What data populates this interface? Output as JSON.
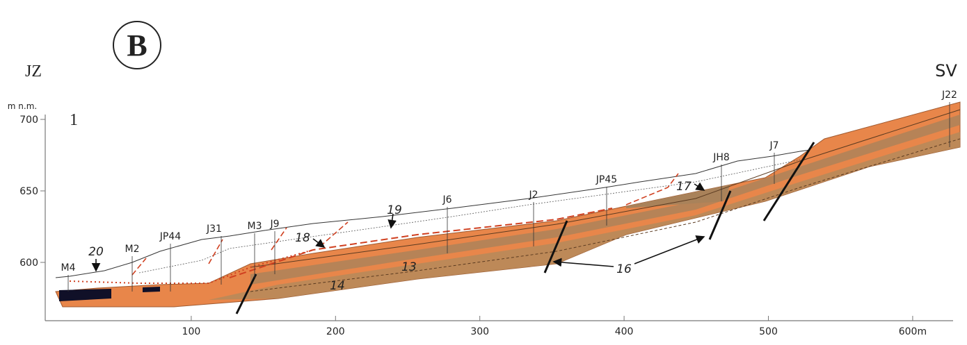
{
  "panel_label": "B",
  "directions": {
    "left": "JZ",
    "right": "SV"
  },
  "section_number": "1",
  "y_axis": {
    "unit": "m n.m.",
    "ticks": [
      700,
      650,
      600
    ]
  },
  "x_axis": {
    "ticks": [
      100,
      200,
      300,
      400,
      500,
      {
        "value": 600,
        "label": "600m"
      }
    ]
  },
  "boreholes": [
    "M4",
    "M2",
    "JP44",
    "J31",
    "M3",
    "J9",
    "J6",
    "J2",
    "JP45",
    "JH8",
    "J7",
    "J22"
  ],
  "annotations": [
    "20",
    "18",
    "19",
    "17",
    "16",
    "13",
    "14"
  ]
}
